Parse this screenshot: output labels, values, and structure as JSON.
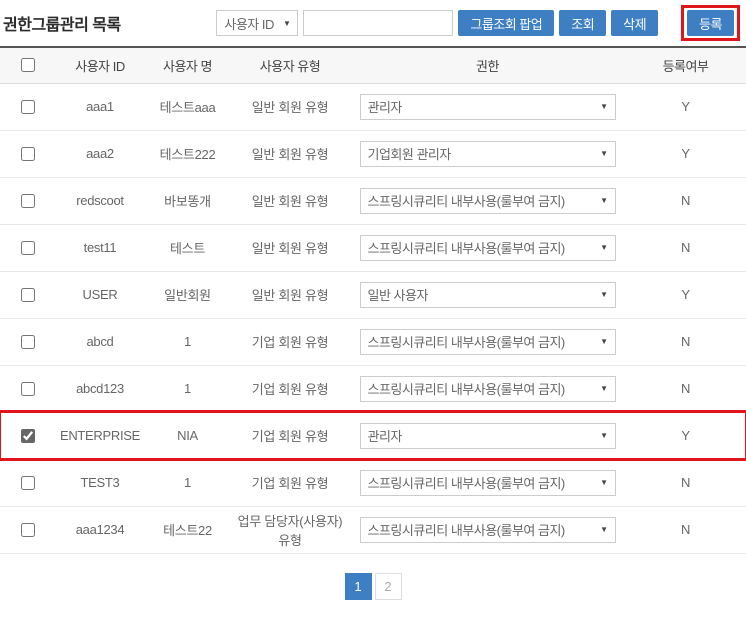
{
  "page": {
    "title": "권한그룹관리 목록"
  },
  "toolbar": {
    "search_type_select": {
      "value": "사용자 ID"
    },
    "search_input": {
      "value": "",
      "placeholder": ""
    },
    "buttons": {
      "group_popup": "그룹조회 팝업",
      "search": "조회",
      "delete": "삭제",
      "register": "등록"
    }
  },
  "table": {
    "columns": [
      "사용자 ID",
      "사용자 명",
      "사용자 유형",
      "권한",
      "등록여부"
    ],
    "rows": [
      {
        "user_id": "aaa1",
        "user_name": "테스트aaa",
        "user_type": "일반 회원 유형",
        "permission": "관리자",
        "registered": "Y",
        "checked": false,
        "highlighted": false
      },
      {
        "user_id": "aaa2",
        "user_name": "테스트222",
        "user_type": "일반 회원 유형",
        "permission": "기업회원 관리자",
        "registered": "Y",
        "checked": false,
        "highlighted": false
      },
      {
        "user_id": "redscoot",
        "user_name": "바보똥개",
        "user_type": "일반 회원 유형",
        "permission": "스프링시큐리티 내부사용(룰부여 금지)",
        "registered": "N",
        "checked": false,
        "highlighted": false
      },
      {
        "user_id": "test11",
        "user_name": "테스트",
        "user_type": "일반 회원 유형",
        "permission": "스프링시큐리티 내부사용(룰부여 금지)",
        "registered": "N",
        "checked": false,
        "highlighted": false
      },
      {
        "user_id": "USER",
        "user_name": "일반회원",
        "user_type": "일반 회원 유형",
        "permission": "일반 사용자",
        "registered": "Y",
        "checked": false,
        "highlighted": false
      },
      {
        "user_id": "abcd",
        "user_name": "1",
        "user_type": "기업 회원 유형",
        "permission": "스프링시큐리티 내부사용(룰부여 금지)",
        "registered": "N",
        "checked": false,
        "highlighted": false
      },
      {
        "user_id": "abcd123",
        "user_name": "1",
        "user_type": "기업 회원 유형",
        "permission": "스프링시큐리티 내부사용(룰부여 금지)",
        "registered": "N",
        "checked": false,
        "highlighted": false
      },
      {
        "user_id": "ENTERPRISE",
        "user_name": "NIA",
        "user_type": "기업 회원 유형",
        "permission": "관리자",
        "registered": "Y",
        "checked": true,
        "highlighted": true
      },
      {
        "user_id": "TEST3",
        "user_name": "1",
        "user_type": "기업 회원 유형",
        "permission": "스프링시큐리티 내부사용(룰부여 금지)",
        "registered": "N",
        "checked": false,
        "highlighted": false
      },
      {
        "user_id": "aaa1234",
        "user_name": "테스트22",
        "user_type": "업무 담당자(사용자) 유형",
        "permission": "스프링시큐리티 내부사용(룰부여 금지)",
        "registered": "N",
        "checked": false,
        "highlighted": false
      }
    ]
  },
  "pagination": {
    "pages": [
      "1",
      "2"
    ],
    "current": "1"
  },
  "icons": {
    "dropdown_arrow": "▼"
  },
  "colors": {
    "primary_blue": "#3e7fc4",
    "annotation_red": "#e0151b"
  }
}
